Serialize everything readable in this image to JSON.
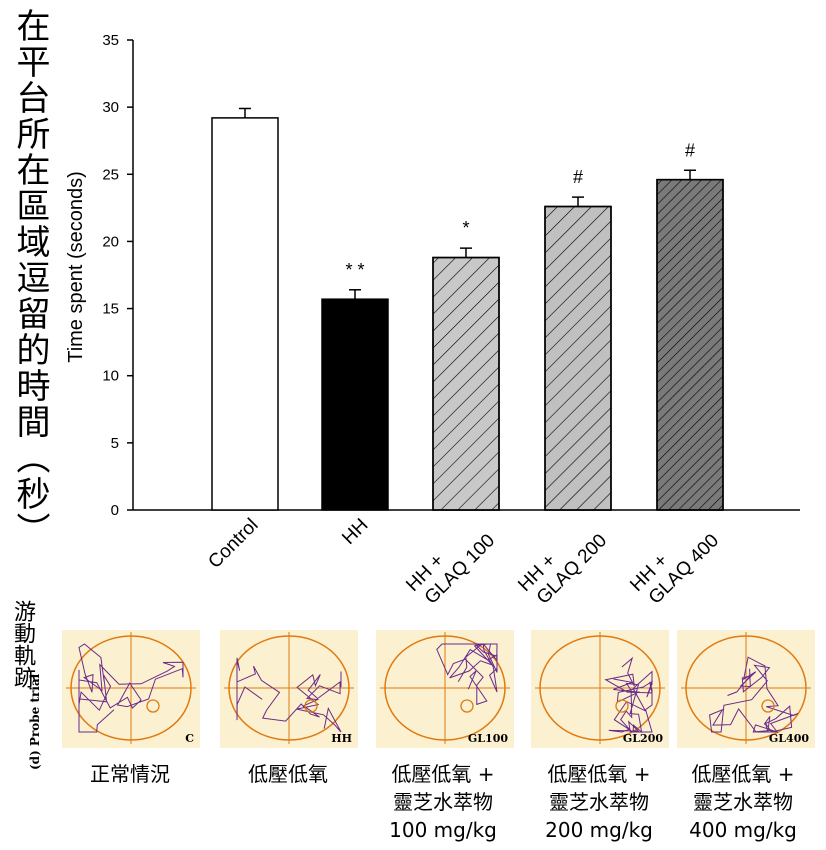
{
  "ylabel_cn": "在平台所在區域逗留的時間（秒）",
  "chart_data": {
    "type": "bar",
    "title": "",
    "ylabel": "Time spent (seconds)",
    "xlabel": "",
    "ylim": [
      0,
      35
    ],
    "yticks": [
      0,
      5,
      10,
      15,
      20,
      25,
      30,
      35
    ],
    "categories": [
      "Control",
      "HH",
      "HH +\nGLAQ 100",
      "HH +\nGLAQ 200",
      "HH +\nGLAQ 400"
    ],
    "values": [
      29.2,
      15.7,
      18.8,
      22.6,
      24.6
    ],
    "errors": [
      0.7,
      0.7,
      0.7,
      0.7,
      0.7
    ],
    "annotations": [
      "",
      "* *",
      "*",
      "#",
      "#"
    ],
    "fills": [
      "#ffffff",
      "#000000",
      "#c8c8c8",
      "#c0c0c0",
      "#7a7a7a"
    ],
    "hatched": [
      false,
      false,
      true,
      true,
      true
    ]
  },
  "tracks": {
    "side_label_cn": "游動軌跡",
    "probe_label": "(d) Probe trial",
    "panels": [
      {
        "code": "C",
        "caption": [
          "正常情況"
        ]
      },
      {
        "code": "HH",
        "caption": [
          "低壓低氧"
        ]
      },
      {
        "code": "GL100",
        "caption": [
          "低壓低氧 +",
          "靈芝水萃物",
          "100 mg/kg"
        ]
      },
      {
        "code": "GL200",
        "caption": [
          "低壓低氧 +",
          "靈芝水萃物",
          "200 mg/kg"
        ]
      },
      {
        "code": "GL400",
        "caption": [
          "低壓低氧 +",
          "靈芝水萃物",
          "400 mg/kg"
        ]
      }
    ],
    "colors": {
      "pool": "#e07a10",
      "path": "#6a2a8a",
      "bg": "#fbf0cf"
    }
  }
}
